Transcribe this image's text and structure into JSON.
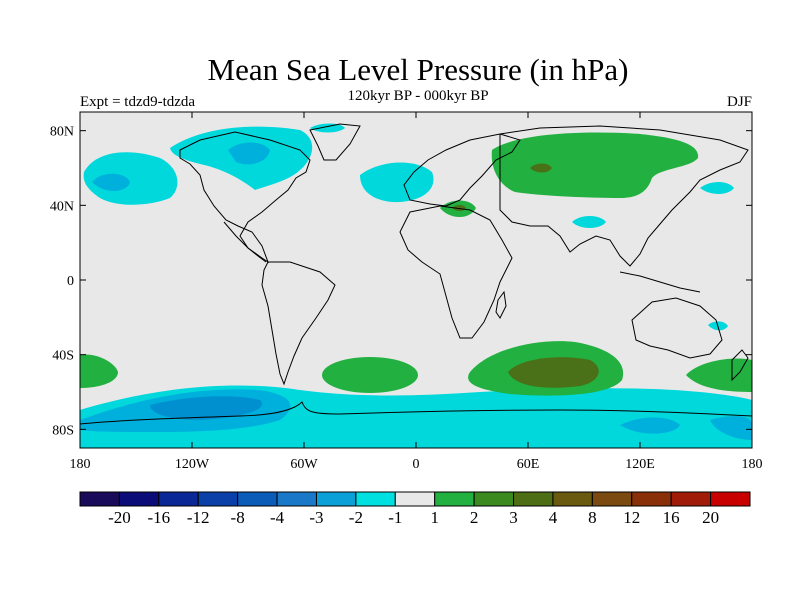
{
  "title": "Mean Sea Level Pressure (in hPa)",
  "subtitle": "120kyr BP - 000kyr BP",
  "experiment_label": "Expt = tdzd9-tdzda",
  "season": "DJF",
  "colors": {
    "background_fill": "#e8e8e8",
    "neg_1": "#00e0e0",
    "neg_2": "#00b4dc",
    "neg_3": "#0088cc",
    "pos_1": "#22b040",
    "pos_2": "#3a8a20",
    "pos_3": "#4e6e16"
  },
  "map": {
    "projection": "cylindrical equidistant",
    "lon_range": [
      -180,
      180
    ],
    "lat_range": [
      -90,
      90
    ],
    "x_ticks": [
      {
        "lon": -180,
        "label": "180"
      },
      {
        "lon": -120,
        "label": "120W"
      },
      {
        "lon": -60,
        "label": "60W"
      },
      {
        "lon": 0,
        "label": "0"
      },
      {
        "lon": 60,
        "label": "60E"
      },
      {
        "lon": 120,
        "label": "120E"
      },
      {
        "lon": 180,
        "label": "180"
      }
    ],
    "y_ticks": [
      {
        "lat": 80,
        "label": "80N"
      },
      {
        "lat": 40,
        "label": "40N"
      },
      {
        "lat": 0,
        "label": "0"
      },
      {
        "lat": -40,
        "label": "40S"
      },
      {
        "lat": -80,
        "label": "80S"
      }
    ]
  },
  "colorbar": {
    "colors": [
      "#1a0a5a",
      "#0c0c78",
      "#0a2896",
      "#0a40a8",
      "#0a5cb8",
      "#1a78c8",
      "#0ca0d8",
      "#00e0e0",
      "#e8e8e8",
      "#22b040",
      "#3a8a20",
      "#4e6e16",
      "#6a5a10",
      "#7a4a10",
      "#8a3008",
      "#a01c08",
      "#c80000"
    ],
    "labels": [
      "-20",
      "-16",
      "-12",
      "-8",
      "-4",
      "-3",
      "-2",
      "-1",
      "1",
      "2",
      "3",
      "4",
      "8",
      "12",
      "16",
      "20"
    ]
  }
}
